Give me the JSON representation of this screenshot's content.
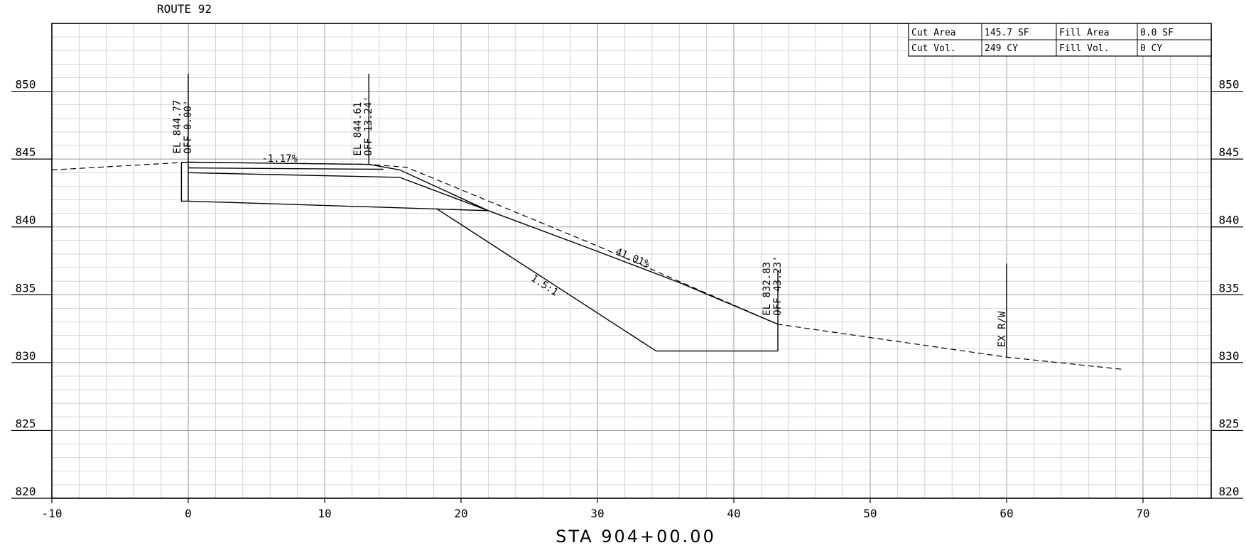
{
  "header": {
    "route": "ROUTE 92"
  },
  "station": "STA 904+00.00",
  "quantities": {
    "cut_area_label": "Cut Area",
    "cut_area_value": "145.7 SF",
    "fill_area_label": "Fill Area",
    "fill_area_value": "0.0 SF",
    "cut_vol_label": "Cut Vol.",
    "cut_vol_value": "249 CY",
    "fill_vol_label": "Fill Vol.",
    "fill_vol_value": "0 CY"
  },
  "chart_data": {
    "type": "line",
    "xlim": [
      -10,
      75
    ],
    "ylim": [
      820,
      855
    ],
    "x_ticks": [
      -10,
      0,
      10,
      20,
      30,
      40,
      50,
      60,
      70
    ],
    "x_tick_labels": [
      "-10",
      "0",
      "10",
      "20",
      "30",
      "40",
      "50",
      "60",
      "70"
    ],
    "y_ticks": [
      820,
      825,
      830,
      835,
      840,
      845,
      850
    ],
    "y_tick_labels": [
      "820",
      "825",
      "830",
      "835",
      "840",
      "845",
      "850"
    ],
    "grid": true,
    "series": [
      {
        "style": "dashed",
        "points": [
          [
            -10,
            844.2
          ],
          [
            0,
            844.77
          ],
          [
            13.24,
            844.61
          ],
          [
            16,
            844.4
          ],
          [
            30,
            838.6
          ],
          [
            43.23,
            832.83
          ],
          [
            60,
            830.4
          ],
          [
            68.5,
            829.5
          ]
        ]
      },
      {
        "style": "solid",
        "points": [
          [
            -0.5,
            844.75
          ],
          [
            0,
            844.77
          ],
          [
            13.24,
            844.61
          ],
          [
            15.5,
            844.2
          ],
          [
            22,
            841.2
          ],
          [
            30,
            838.2
          ],
          [
            36,
            835.9
          ],
          [
            43.23,
            832.83
          ],
          [
            43.23,
            830.85
          ],
          [
            34.3,
            830.85
          ],
          [
            18.2,
            841.35
          ]
        ]
      },
      {
        "style": "solid",
        "points": [
          [
            -0.5,
            844.75
          ],
          [
            -0.5,
            841.9
          ],
          [
            0,
            841.9
          ],
          [
            0,
            844.77
          ]
        ]
      },
      {
        "style": "solid",
        "points": [
          [
            0,
            844.35
          ],
          [
            14.3,
            844.25
          ]
        ]
      },
      {
        "style": "solid",
        "points": [
          [
            0,
            844.0
          ],
          [
            15.5,
            843.65
          ],
          [
            22,
            841.2
          ]
        ]
      },
      {
        "style": "solid",
        "points": [
          [
            0,
            841.9
          ],
          [
            22,
            841.2
          ]
        ]
      }
    ],
    "markers": [
      {
        "x": 0,
        "y_from": 844.77,
        "y_to": 851.3,
        "labels": [
          "EL 844.77",
          "OFF 0.00'"
        ]
      },
      {
        "x": 13.24,
        "y_from": 844.61,
        "y_to": 851.3,
        "labels": [
          "EL 844.61",
          "OFF 13.24'"
        ]
      },
      {
        "x": 43.23,
        "y_from": 832.83,
        "y_to": 836.8,
        "labels": [
          "EL 832.83",
          "OFF 43.23'"
        ]
      },
      {
        "x": 60,
        "y_from": 830.4,
        "y_to": 837.3,
        "labels": [
          "EX R/W"
        ]
      }
    ],
    "annotations": [
      {
        "text": "-1.17%",
        "x": 6.7,
        "y": 844.8,
        "rotate": 0
      },
      {
        "text": "41.01%",
        "x": 32.5,
        "y": 837.5,
        "rotate": 22
      },
      {
        "text": "1.5:1",
        "x": 26,
        "y": 835.5,
        "rotate": 33
      }
    ]
  }
}
